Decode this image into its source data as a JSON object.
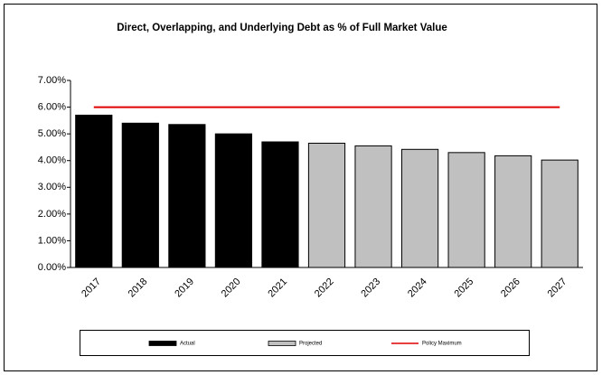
{
  "chart_data": {
    "type": "bar",
    "title": "Direct, Overlapping, and Underlying Debt as % of Full Market Value",
    "categories": [
      "2017",
      "2018",
      "2019",
      "2020",
      "2021",
      "2022",
      "2023",
      "2024",
      "2025",
      "2026",
      "2027"
    ],
    "series": [
      {
        "name": "Actual",
        "type": "bar",
        "color": "#000000",
        "values": [
          5.7,
          5.4,
          5.35,
          5.0,
          4.7,
          null,
          null,
          null,
          null,
          null,
          null
        ]
      },
      {
        "name": "Projected",
        "type": "bar",
        "color": "#c0c0c0",
        "values": [
          null,
          null,
          null,
          null,
          null,
          4.65,
          4.55,
          4.42,
          4.3,
          4.18,
          4.02
        ]
      },
      {
        "name": "Policy Maximum",
        "type": "line",
        "color": "#e00000",
        "values": [
          6,
          6,
          6,
          6,
          6,
          6,
          6,
          6,
          6,
          6,
          6
        ]
      }
    ],
    "ylim": [
      0,
      7
    ],
    "yticks": [
      {
        "value": 0,
        "label": "0.00%"
      },
      {
        "value": 1,
        "label": "1.00%"
      },
      {
        "value": 2,
        "label": "2.00%"
      },
      {
        "value": 3,
        "label": "3.00%"
      },
      {
        "value": 4,
        "label": "4.00%"
      },
      {
        "value": 5,
        "label": "5.00%"
      },
      {
        "value": 6,
        "label": "6.00%"
      },
      {
        "value": 7,
        "label": "7.00%"
      }
    ],
    "grid": false,
    "legend": "bottom"
  }
}
